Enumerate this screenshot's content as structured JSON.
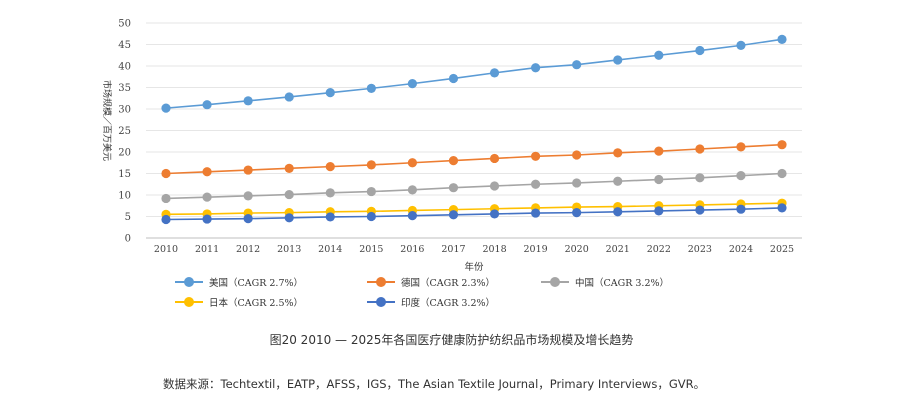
{
  "chart_data": {
    "type": "line",
    "title": "",
    "xlabel": "年份",
    "ylabel": "市场规模／百万美元",
    "ylim": [
      0,
      50
    ],
    "yticks": [
      0,
      5,
      10,
      15,
      20,
      25,
      30,
      35,
      40,
      45,
      50
    ],
    "grid": "horizontal",
    "legend_position": "bottom",
    "x": [
      "2010",
      "2011",
      "2012",
      "2013",
      "2014",
      "2015",
      "2016",
      "2017",
      "2018",
      "2019",
      "2020",
      "2021",
      "2022",
      "2023",
      "2024",
      "2025"
    ],
    "series": [
      {
        "name": "美国（CAGR 2.7%）",
        "color": "#5b9bd5",
        "values": [
          30.2,
          31.0,
          31.9,
          32.8,
          33.8,
          34.8,
          35.9,
          37.1,
          38.4,
          39.6,
          40.3,
          41.4,
          42.5,
          43.6,
          44.8,
          46.2
        ]
      },
      {
        "name": "德国（CAGR 2.3%）",
        "color": "#ed7d31",
        "values": [
          15.0,
          15.4,
          15.8,
          16.2,
          16.6,
          17.0,
          17.5,
          18.0,
          18.5,
          19.0,
          19.3,
          19.8,
          20.2,
          20.7,
          21.2,
          21.7
        ]
      },
      {
        "name": "中国（CAGR 3.2%）",
        "color": "#a5a5a5",
        "values": [
          9.2,
          9.5,
          9.8,
          10.1,
          10.5,
          10.8,
          11.2,
          11.7,
          12.1,
          12.5,
          12.8,
          13.2,
          13.6,
          14.0,
          14.5,
          15.0
        ]
      },
      {
        "name": "日本（CAGR 2.5%）",
        "color": "#ffc000",
        "values": [
          5.5,
          5.6,
          5.8,
          5.9,
          6.1,
          6.2,
          6.4,
          6.6,
          6.8,
          7.0,
          7.2,
          7.3,
          7.5,
          7.7,
          7.9,
          8.1
        ]
      },
      {
        "name": "印度（CAGR 3.2%）",
        "color": "#4472c4",
        "values": [
          4.3,
          4.4,
          4.5,
          4.7,
          4.9,
          5.0,
          5.2,
          5.4,
          5.6,
          5.8,
          5.9,
          6.1,
          6.3,
          6.5,
          6.7,
          7.0
        ]
      }
    ]
  },
  "caption": "图20 2010 — 2025年各国医疗健康防护纺织品市场规模及增长趋势",
  "source": "数据来源：Techtextil，EATP，AFSS，IGS，The Asian Textile Journal，Primary Interviews，GVR。"
}
